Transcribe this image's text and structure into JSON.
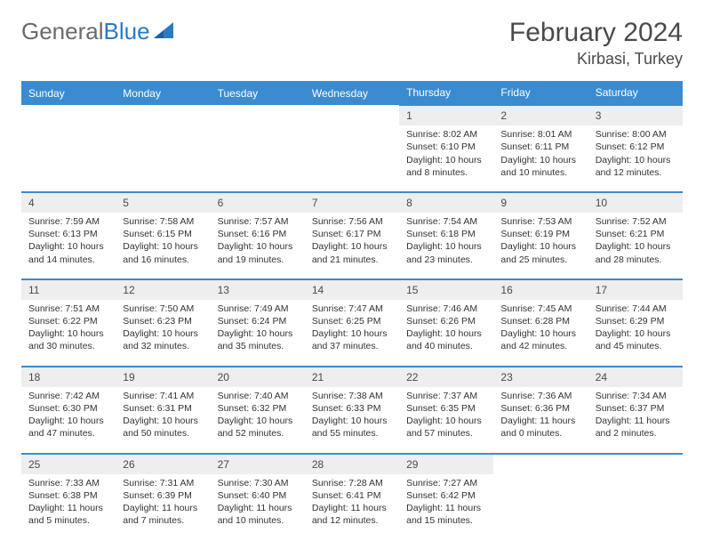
{
  "brand": {
    "part1": "General",
    "part2": "Blue"
  },
  "title": "February 2024",
  "location": "Kirbasi, Turkey",
  "colors": {
    "header_bg": "#3b8bd0",
    "header_text": "#ffffff",
    "daynum_bg": "#eeeeee",
    "row_border": "#3b8bd0",
    "body_text": "#333333",
    "title_text": "#4a4a4a",
    "logo_gray": "#6b6b6b",
    "logo_blue": "#2a7ac2",
    "page_bg": "#ffffff"
  },
  "typography": {
    "title_fontsize": 30,
    "location_fontsize": 18,
    "dow_fontsize": 12,
    "daynum_fontsize": 12,
    "cell_fontsize": 10.5
  },
  "dow": [
    "Sunday",
    "Monday",
    "Tuesday",
    "Wednesday",
    "Thursday",
    "Friday",
    "Saturday"
  ],
  "weeks": [
    [
      null,
      null,
      null,
      null,
      {
        "n": "1",
        "sr": "Sunrise: 8:02 AM",
        "ss": "Sunset: 6:10 PM",
        "d1": "Daylight: 10 hours",
        "d2": "and 8 minutes."
      },
      {
        "n": "2",
        "sr": "Sunrise: 8:01 AM",
        "ss": "Sunset: 6:11 PM",
        "d1": "Daylight: 10 hours",
        "d2": "and 10 minutes."
      },
      {
        "n": "3",
        "sr": "Sunrise: 8:00 AM",
        "ss": "Sunset: 6:12 PM",
        "d1": "Daylight: 10 hours",
        "d2": "and 12 minutes."
      }
    ],
    [
      {
        "n": "4",
        "sr": "Sunrise: 7:59 AM",
        "ss": "Sunset: 6:13 PM",
        "d1": "Daylight: 10 hours",
        "d2": "and 14 minutes."
      },
      {
        "n": "5",
        "sr": "Sunrise: 7:58 AM",
        "ss": "Sunset: 6:15 PM",
        "d1": "Daylight: 10 hours",
        "d2": "and 16 minutes."
      },
      {
        "n": "6",
        "sr": "Sunrise: 7:57 AM",
        "ss": "Sunset: 6:16 PM",
        "d1": "Daylight: 10 hours",
        "d2": "and 19 minutes."
      },
      {
        "n": "7",
        "sr": "Sunrise: 7:56 AM",
        "ss": "Sunset: 6:17 PM",
        "d1": "Daylight: 10 hours",
        "d2": "and 21 minutes."
      },
      {
        "n": "8",
        "sr": "Sunrise: 7:54 AM",
        "ss": "Sunset: 6:18 PM",
        "d1": "Daylight: 10 hours",
        "d2": "and 23 minutes."
      },
      {
        "n": "9",
        "sr": "Sunrise: 7:53 AM",
        "ss": "Sunset: 6:19 PM",
        "d1": "Daylight: 10 hours",
        "d2": "and 25 minutes."
      },
      {
        "n": "10",
        "sr": "Sunrise: 7:52 AM",
        "ss": "Sunset: 6:21 PM",
        "d1": "Daylight: 10 hours",
        "d2": "and 28 minutes."
      }
    ],
    [
      {
        "n": "11",
        "sr": "Sunrise: 7:51 AM",
        "ss": "Sunset: 6:22 PM",
        "d1": "Daylight: 10 hours",
        "d2": "and 30 minutes."
      },
      {
        "n": "12",
        "sr": "Sunrise: 7:50 AM",
        "ss": "Sunset: 6:23 PM",
        "d1": "Daylight: 10 hours",
        "d2": "and 32 minutes."
      },
      {
        "n": "13",
        "sr": "Sunrise: 7:49 AM",
        "ss": "Sunset: 6:24 PM",
        "d1": "Daylight: 10 hours",
        "d2": "and 35 minutes."
      },
      {
        "n": "14",
        "sr": "Sunrise: 7:47 AM",
        "ss": "Sunset: 6:25 PM",
        "d1": "Daylight: 10 hours",
        "d2": "and 37 minutes."
      },
      {
        "n": "15",
        "sr": "Sunrise: 7:46 AM",
        "ss": "Sunset: 6:26 PM",
        "d1": "Daylight: 10 hours",
        "d2": "and 40 minutes."
      },
      {
        "n": "16",
        "sr": "Sunrise: 7:45 AM",
        "ss": "Sunset: 6:28 PM",
        "d1": "Daylight: 10 hours",
        "d2": "and 42 minutes."
      },
      {
        "n": "17",
        "sr": "Sunrise: 7:44 AM",
        "ss": "Sunset: 6:29 PM",
        "d1": "Daylight: 10 hours",
        "d2": "and 45 minutes."
      }
    ],
    [
      {
        "n": "18",
        "sr": "Sunrise: 7:42 AM",
        "ss": "Sunset: 6:30 PM",
        "d1": "Daylight: 10 hours",
        "d2": "and 47 minutes."
      },
      {
        "n": "19",
        "sr": "Sunrise: 7:41 AM",
        "ss": "Sunset: 6:31 PM",
        "d1": "Daylight: 10 hours",
        "d2": "and 50 minutes."
      },
      {
        "n": "20",
        "sr": "Sunrise: 7:40 AM",
        "ss": "Sunset: 6:32 PM",
        "d1": "Daylight: 10 hours",
        "d2": "and 52 minutes."
      },
      {
        "n": "21",
        "sr": "Sunrise: 7:38 AM",
        "ss": "Sunset: 6:33 PM",
        "d1": "Daylight: 10 hours",
        "d2": "and 55 minutes."
      },
      {
        "n": "22",
        "sr": "Sunrise: 7:37 AM",
        "ss": "Sunset: 6:35 PM",
        "d1": "Daylight: 10 hours",
        "d2": "and 57 minutes."
      },
      {
        "n": "23",
        "sr": "Sunrise: 7:36 AM",
        "ss": "Sunset: 6:36 PM",
        "d1": "Daylight: 11 hours",
        "d2": "and 0 minutes."
      },
      {
        "n": "24",
        "sr": "Sunrise: 7:34 AM",
        "ss": "Sunset: 6:37 PM",
        "d1": "Daylight: 11 hours",
        "d2": "and 2 minutes."
      }
    ],
    [
      {
        "n": "25",
        "sr": "Sunrise: 7:33 AM",
        "ss": "Sunset: 6:38 PM",
        "d1": "Daylight: 11 hours",
        "d2": "and 5 minutes."
      },
      {
        "n": "26",
        "sr": "Sunrise: 7:31 AM",
        "ss": "Sunset: 6:39 PM",
        "d1": "Daylight: 11 hours",
        "d2": "and 7 minutes."
      },
      {
        "n": "27",
        "sr": "Sunrise: 7:30 AM",
        "ss": "Sunset: 6:40 PM",
        "d1": "Daylight: 11 hours",
        "d2": "and 10 minutes."
      },
      {
        "n": "28",
        "sr": "Sunrise: 7:28 AM",
        "ss": "Sunset: 6:41 PM",
        "d1": "Daylight: 11 hours",
        "d2": "and 12 minutes."
      },
      {
        "n": "29",
        "sr": "Sunrise: 7:27 AM",
        "ss": "Sunset: 6:42 PM",
        "d1": "Daylight: 11 hours",
        "d2": "and 15 minutes."
      },
      null,
      null
    ]
  ]
}
